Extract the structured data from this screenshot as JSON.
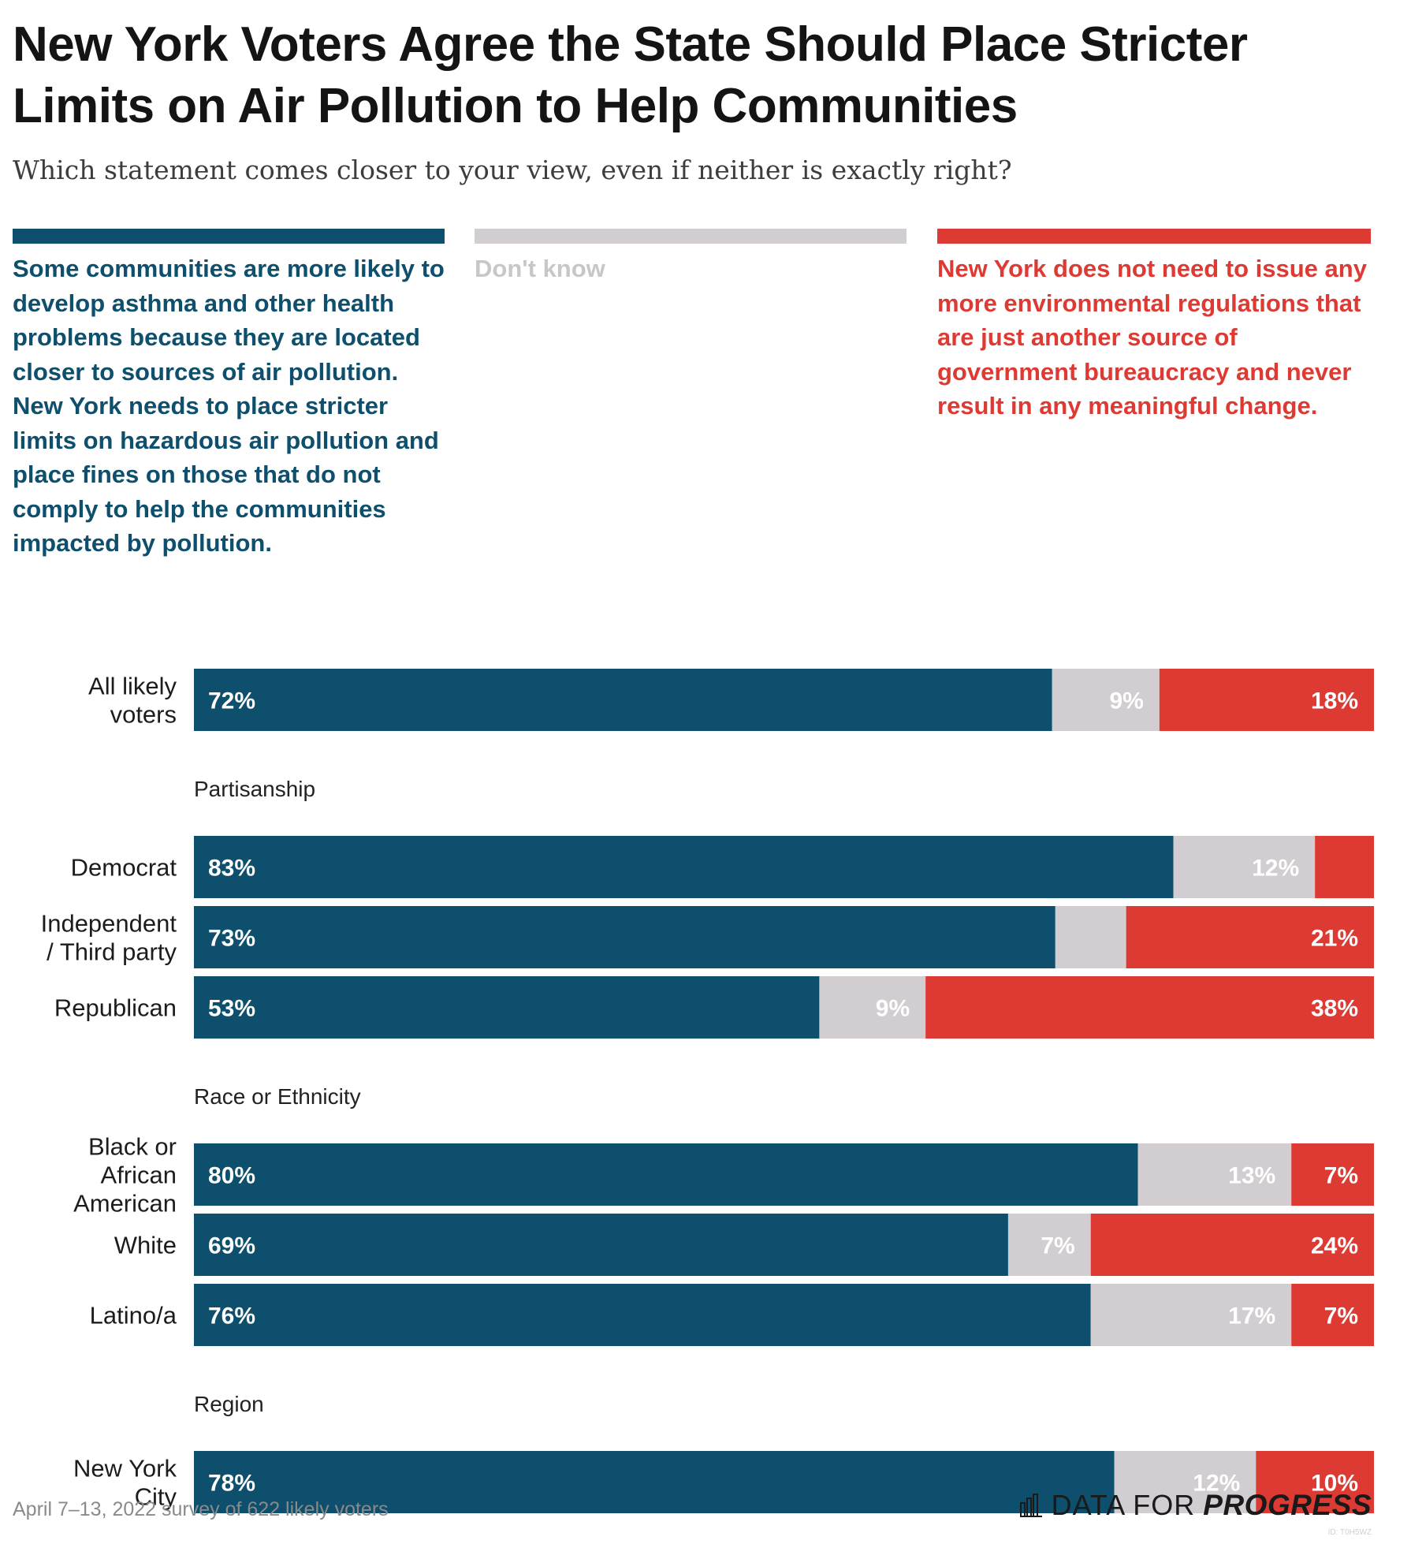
{
  "title": "New York Voters Agree the State Should Place Stricter Limits on Air Pollution to Help Communities",
  "subtitle": "Which statement comes closer to your view, even if neither is exactly right?",
  "legend": {
    "support": "Some communities are more likely to develop asthma and other health problems because they are located closer to sources of air pollution. New York needs to place stricter limits on hazardous air pollution and place fines on those that do not comply to help the communities impacted by pollution.",
    "dont_know": "Don't know",
    "oppose": "New York does not need to issue any more environmental regulations that are just another source of government bureaucracy and never result in any meaningful change."
  },
  "colors": {
    "support": "#0d4f6c",
    "dont_know": "#d2cdd1",
    "oppose": "#dd3a34",
    "support_text": "#0d4f6c",
    "dont_know_text": "#c9c6c9",
    "oppose_text": "#dd3a34"
  },
  "footnote": "April 7–13, 2022 survey of 622 likely voters",
  "brand": {
    "word1": "DATA FOR",
    "word2": "PROGRESS",
    "id": "ID: T0H5WZ"
  },
  "chart_data": {
    "type": "bar",
    "orientation": "horizontal",
    "stacked": true,
    "xlim": [
      0,
      100
    ],
    "x_ticks": [
      "0%",
      "25%",
      "50%",
      "75%",
      "100%"
    ],
    "series_names": [
      "support",
      "dont_know",
      "oppose"
    ],
    "rows": [
      {
        "label": [
          "All likely",
          "voters"
        ],
        "values": [
          72,
          9,
          18
        ],
        "labels": [
          "72%",
          "9%",
          "18%"
        ]
      },
      {
        "group": "Partisanship"
      },
      {
        "label": [
          "Democrat"
        ],
        "values": [
          83,
          12,
          5
        ],
        "labels": [
          "83%",
          "12%",
          ""
        ]
      },
      {
        "label": [
          "Independent",
          "/ Third party"
        ],
        "values": [
          73,
          6,
          21
        ],
        "labels": [
          "73%",
          "",
          "21%"
        ]
      },
      {
        "label": [
          "Republican"
        ],
        "values": [
          53,
          9,
          38
        ],
        "labels": [
          "53%",
          "9%",
          "38%"
        ]
      },
      {
        "group": "Race or Ethnicity"
      },
      {
        "label": [
          "Black or",
          "African",
          "American"
        ],
        "values": [
          80,
          13,
          7
        ],
        "labels": [
          "80%",
          "13%",
          "7%"
        ]
      },
      {
        "label": [
          "White"
        ],
        "values": [
          69,
          7,
          24
        ],
        "labels": [
          "69%",
          "7%",
          "24%"
        ]
      },
      {
        "label": [
          "Latino/a"
        ],
        "values": [
          76,
          17,
          7
        ],
        "labels": [
          "76%",
          "17%",
          "7%"
        ]
      },
      {
        "group": "Region"
      },
      {
        "label": [
          "New York",
          "City"
        ],
        "values": [
          78,
          12,
          10
        ],
        "labels": [
          "78%",
          "12%",
          "10%"
        ]
      }
    ]
  }
}
